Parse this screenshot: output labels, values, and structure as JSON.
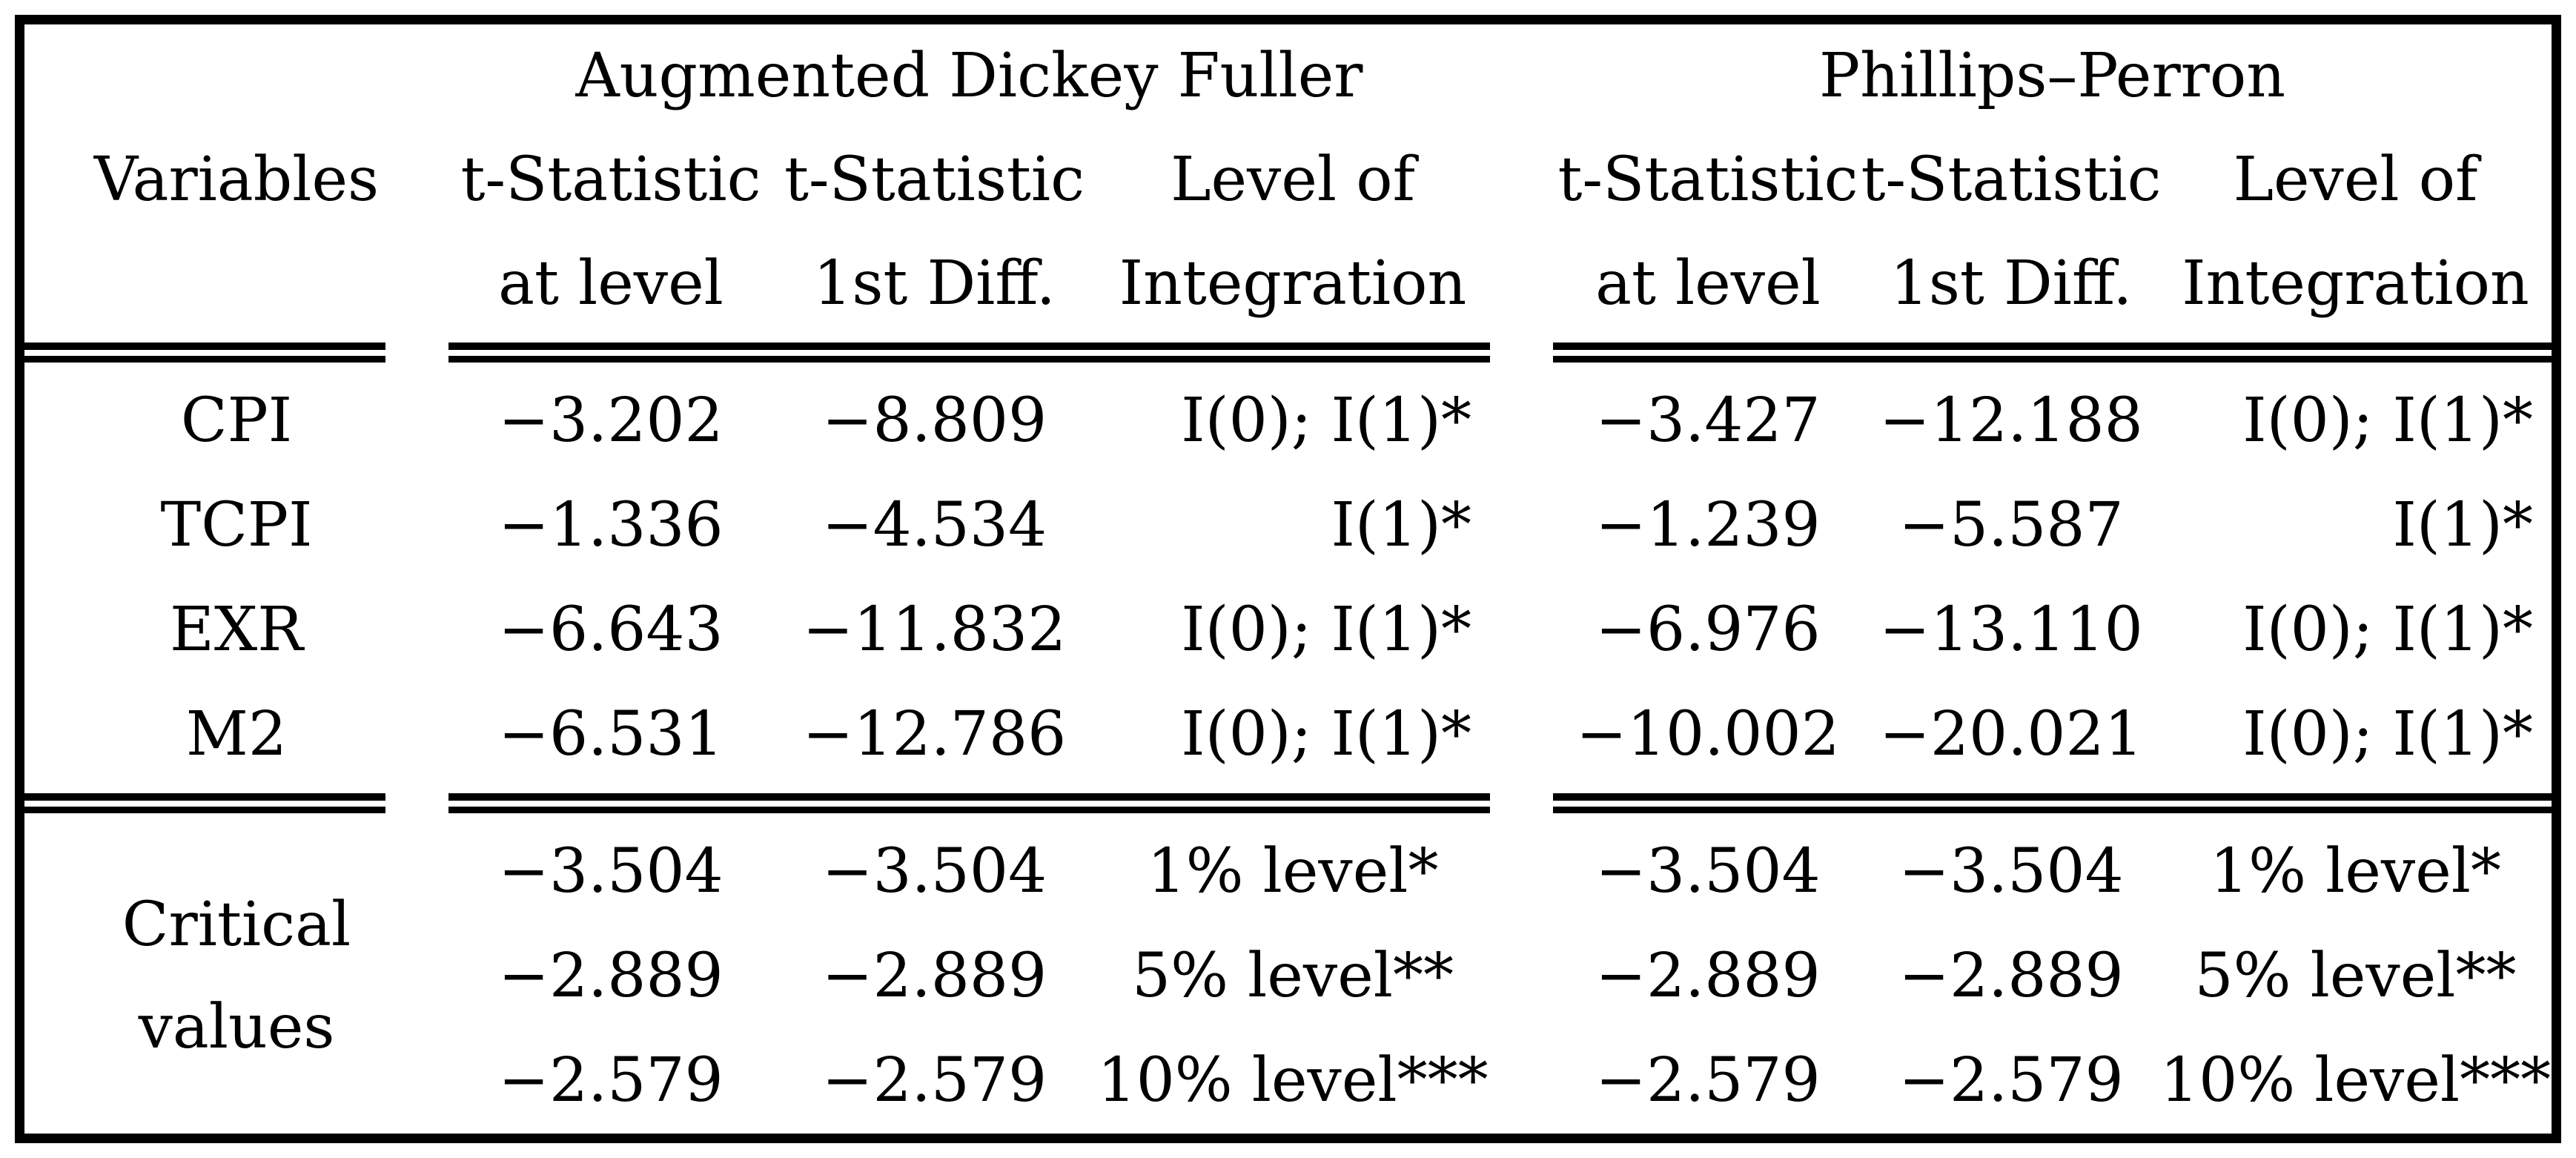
{
  "table": {
    "variables_header": "Variables",
    "adf": {
      "title": "Augmented Dickey Fuller",
      "col1_line1": "t-Statistic",
      "col1_line2": "at level",
      "col2_line1": "t-Statistic",
      "col2_line2": "1st Diff.",
      "col3_line1": "Level of",
      "col3_line2": "Integration"
    },
    "pp": {
      "title": "Phillips–Perron",
      "col1_line1": "t-Statistic",
      "col1_line2": "at level",
      "col2_line1": "t-Statistic",
      "col2_line2": "1st Diff.",
      "col3_line1": "Level of",
      "col3_line2": "Integration"
    },
    "rows": [
      {
        "variable": "CPI",
        "adf_level": "−3.202",
        "adf_diff": "−8.809",
        "adf_integration": "I(0); I(1)*",
        "pp_level": "−3.427",
        "pp_diff": "−12.188",
        "pp_integration": "I(0); I(1)*"
      },
      {
        "variable": "TCPI",
        "adf_level": "−1.336",
        "adf_diff": "−4.534",
        "adf_integration": "I(1)*",
        "pp_level": "−1.239",
        "pp_diff": "−5.587",
        "pp_integration": "I(1)*"
      },
      {
        "variable": "EXR",
        "adf_level": "−6.643",
        "adf_diff": "−11.832",
        "adf_integration": "I(0); I(1)*",
        "pp_level": "−6.976",
        "pp_diff": "−13.110",
        "pp_integration": "I(0); I(1)*"
      },
      {
        "variable": "M2",
        "adf_level": "−6.531",
        "adf_diff": "−12.786",
        "adf_integration": "I(0); I(1)*",
        "pp_level": "−10.002",
        "pp_diff": "−20.021",
        "pp_integration": "I(0); I(1)*"
      }
    ],
    "critical": {
      "label_line1": "Critical",
      "label_line2": "values",
      "rows": [
        {
          "adf_level": "−3.504",
          "adf_diff": "−3.504",
          "adf_integration": "1% level*",
          "pp_level": "−3.504",
          "pp_diff": "−3.504",
          "pp_integration": "1% level*"
        },
        {
          "adf_level": "−2.889",
          "adf_diff": "−2.889",
          "adf_integration": "5% level**",
          "pp_level": "−2.889",
          "pp_diff": "−2.889",
          "pp_integration": "5% level**"
        },
        {
          "adf_level": "−2.579",
          "adf_diff": "−2.579",
          "adf_integration": "10% level***",
          "pp_level": "−2.579",
          "pp_diff": "−2.579",
          "pp_integration": "10% level***"
        }
      ]
    }
  }
}
